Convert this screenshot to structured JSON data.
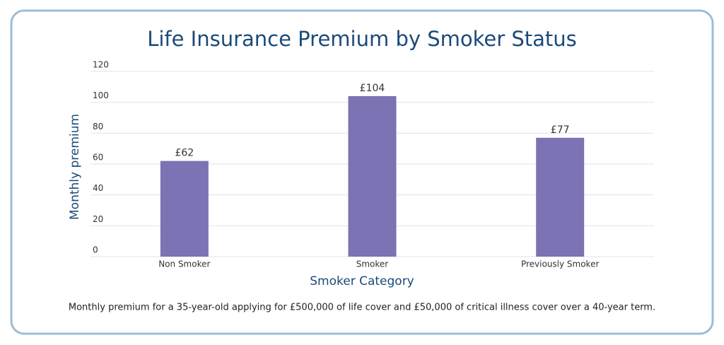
{
  "chart_data": {
    "type": "bar",
    "title": "Life Insurance Premium by Smoker Status",
    "x_label": "Smoker Category",
    "y_label": "Monthly premium",
    "footnote": "Monthly premium for a 35-year-old applying for £500,000 of life cover and £50,000 of critical illness cover over a 40-year term.",
    "categories": [
      "Non Smoker",
      "Smoker",
      "Previously Smoker"
    ],
    "values": [
      62,
      104,
      77
    ],
    "value_labels": [
      "£62",
      "£104",
      "£77"
    ],
    "color": "#7b73b3",
    "ylim": [
      0,
      120
    ],
    "yticks": [
      0,
      20,
      40,
      60,
      80,
      100,
      120
    ],
    "grid": true
  }
}
